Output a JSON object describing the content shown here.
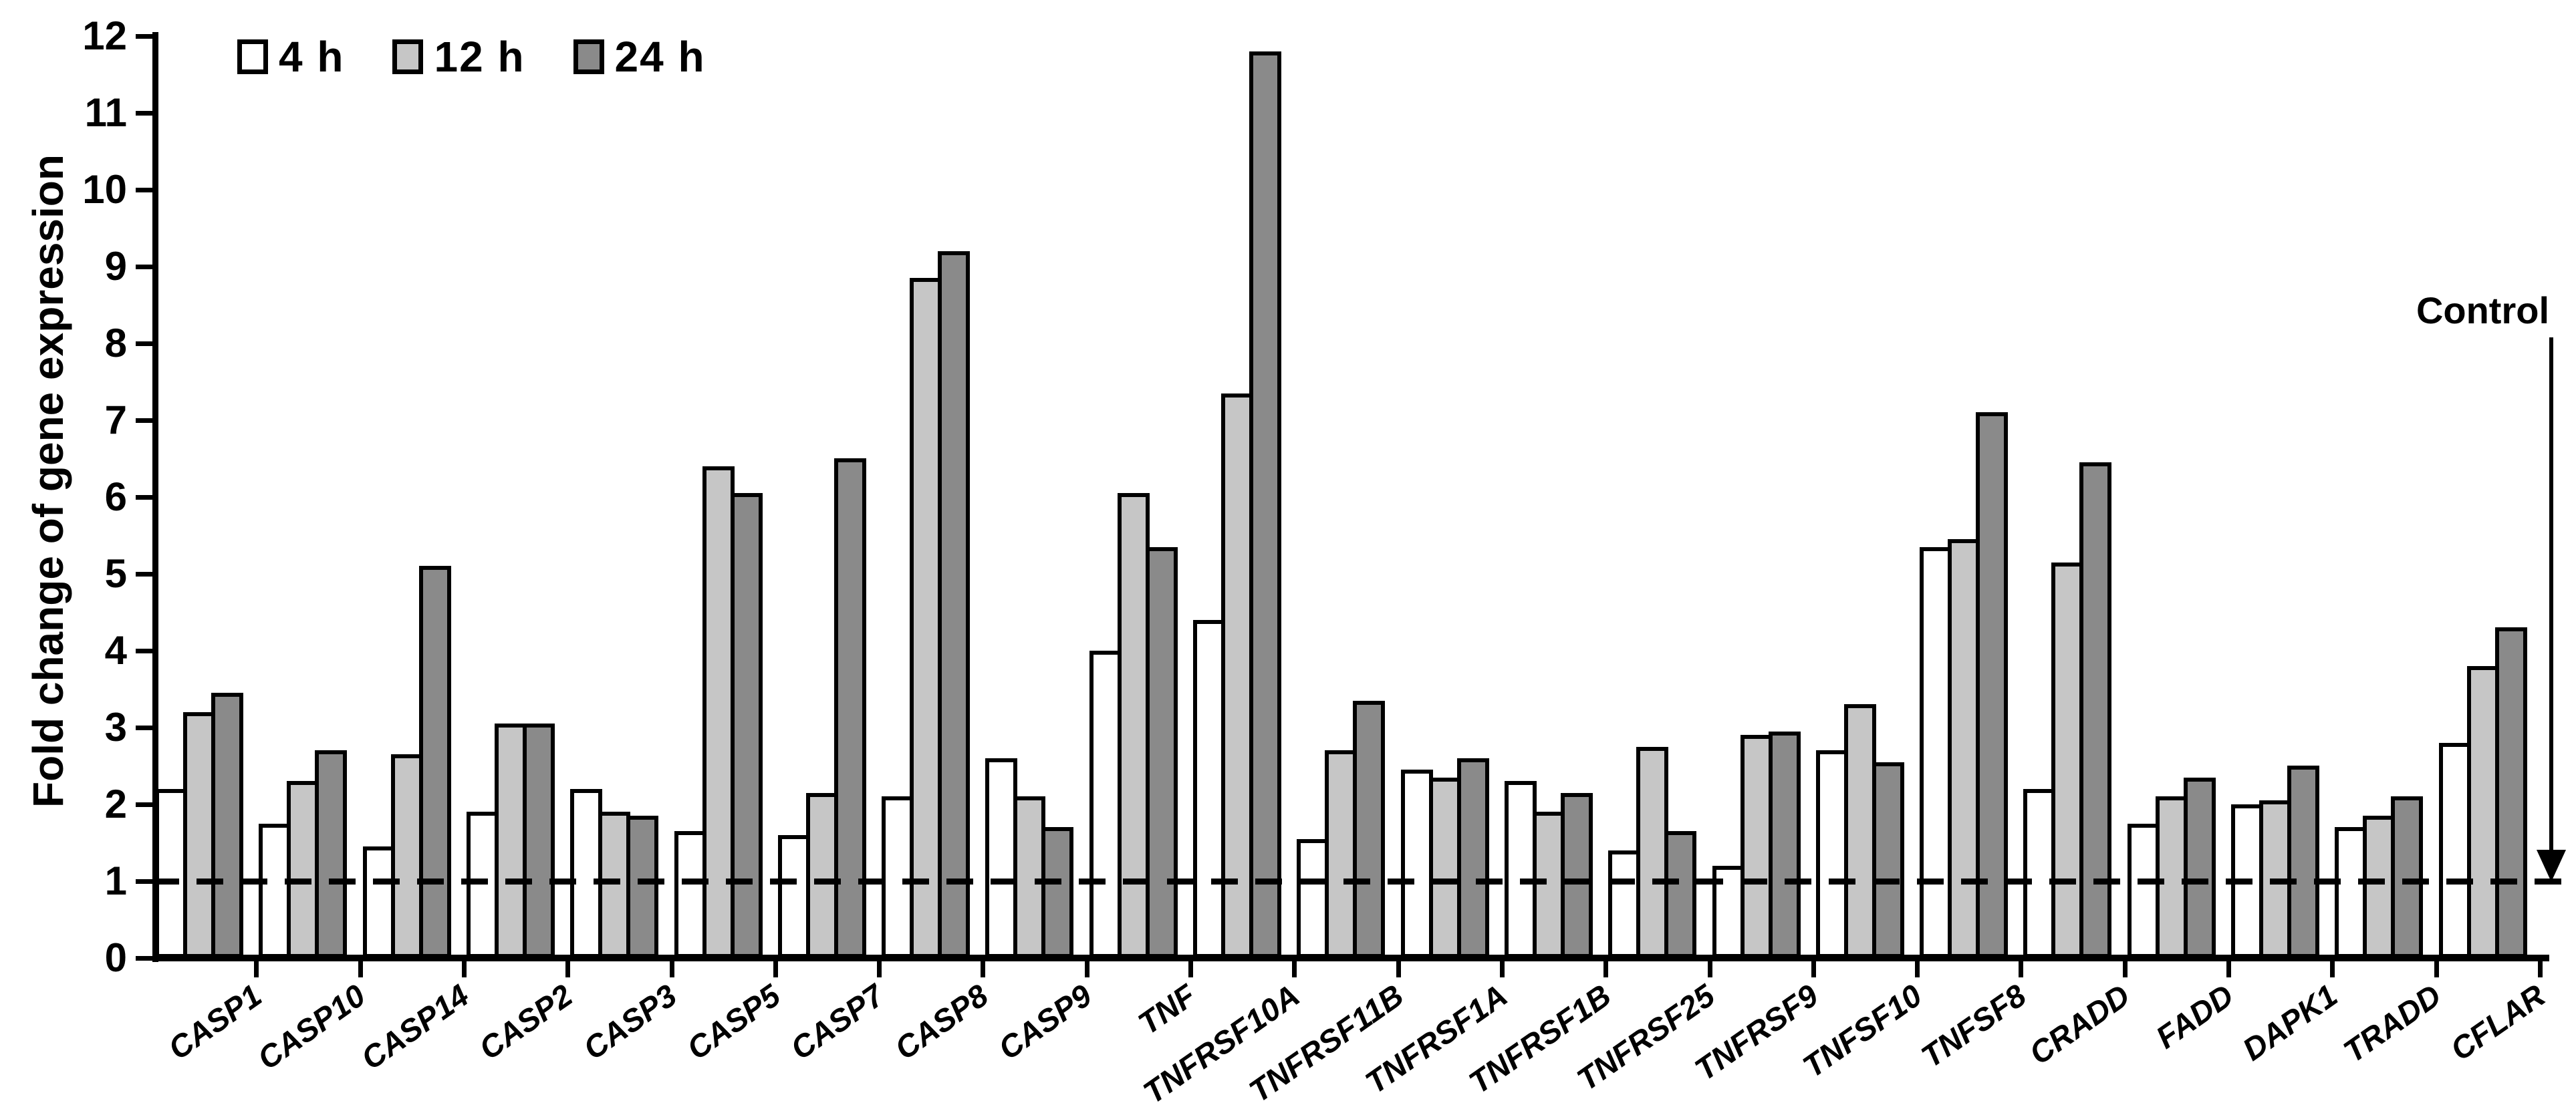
{
  "chart_data": {
    "type": "bar",
    "title": "",
    "xlabel": "",
    "ylabel": "Fold change of gene expression",
    "ylim": [
      0,
      12
    ],
    "yticks": [
      0,
      1,
      2,
      3,
      4,
      5,
      6,
      7,
      8,
      9,
      10,
      11,
      12
    ],
    "grid": false,
    "legend_position": "top-left",
    "reference_line": {
      "value": 1,
      "label": "Control"
    },
    "categories": [
      "CASP1",
      "CASP10",
      "CASP14",
      "CASP2",
      "CASP3",
      "CASP5",
      "CASP7",
      "CASP8",
      "CASP9",
      "TNF",
      "TNFRSF10A",
      "TNFRSF11B",
      "TNFRSF1A",
      "TNFRSF1B",
      "TNFRSF25",
      "TNFRSF9",
      "TNFSF10",
      "TNFSF8",
      "CRADD",
      "FADD",
      "DAPK1",
      "TRADD",
      "CFLAR"
    ],
    "series": [
      {
        "name": "4 h",
        "color": "#ffffff",
        "values": [
          2.2,
          1.75,
          1.45,
          1.9,
          2.2,
          1.65,
          1.6,
          2.1,
          2.6,
          4.0,
          4.4,
          1.55,
          2.45,
          2.3,
          1.4,
          1.2,
          2.7,
          5.35,
          2.2,
          1.75,
          2.0,
          1.7,
          2.8
        ]
      },
      {
        "name": "12 h",
        "color": "#c6c6c6",
        "values": [
          3.2,
          2.3,
          2.65,
          3.05,
          1.9,
          6.4,
          2.15,
          8.85,
          2.1,
          6.05,
          7.35,
          2.7,
          2.35,
          1.9,
          2.75,
          2.9,
          3.3,
          5.45,
          5.15,
          2.1,
          2.05,
          1.85,
          3.8
        ]
      },
      {
        "name": "24 h",
        "color": "#8a8a8a",
        "values": [
          3.45,
          2.7,
          5.1,
          3.05,
          1.85,
          6.05,
          6.5,
          9.2,
          1.7,
          5.35,
          11.8,
          3.35,
          2.6,
          2.15,
          1.65,
          2.95,
          2.55,
          7.1,
          6.45,
          2.35,
          2.5,
          2.1,
          4.3
        ]
      }
    ]
  }
}
